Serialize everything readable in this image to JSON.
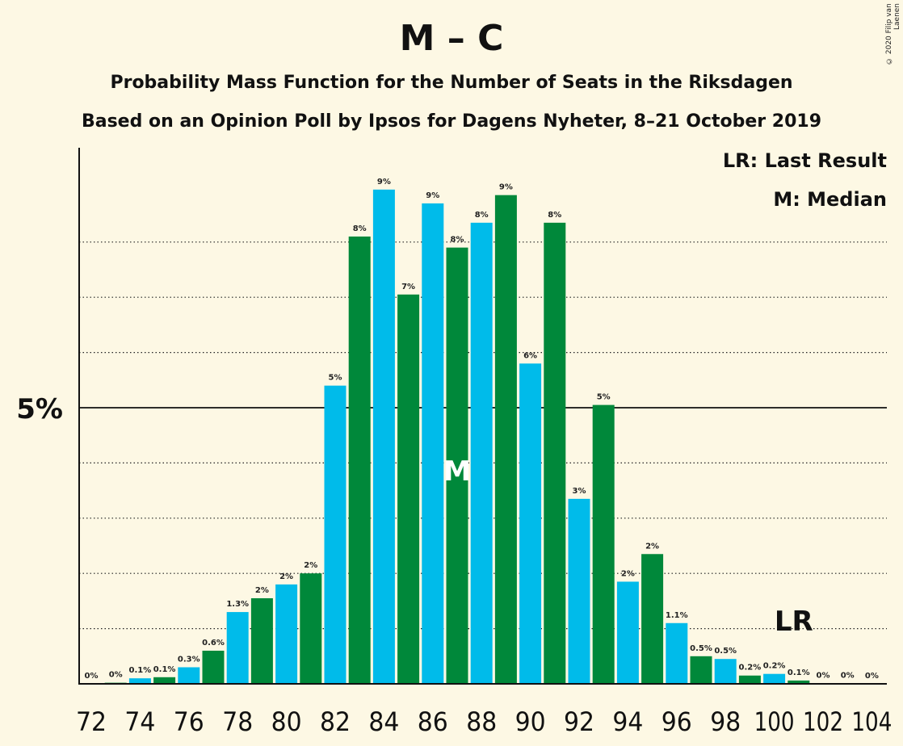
{
  "header": {
    "title": "M – C",
    "subtitle1": "Probability Mass Function for the Number of Seats in the Riksdagen",
    "subtitle2": "Based on an Opinion Poll by Ipsos for Dagens Nyheter, 8–21 October 2019",
    "copyright": "© 2020 Filip van Laenen"
  },
  "legend": {
    "lr": "LR: Last Result",
    "median": "M: Median"
  },
  "colors": {
    "blue": "#00bbea",
    "green": "#00883a",
    "background": "#fdf8e4"
  },
  "chart_data": {
    "type": "bar",
    "x": [
      72,
      73,
      74,
      75,
      76,
      77,
      78,
      79,
      80,
      81,
      82,
      83,
      84,
      85,
      86,
      87,
      88,
      89,
      90,
      91,
      92,
      93,
      94,
      95,
      96,
      97,
      98,
      99,
      100,
      101,
      102,
      103,
      104
    ],
    "values": [
      0,
      0.02,
      0.1,
      0.12,
      0.3,
      0.6,
      1.3,
      1.55,
      1.8,
      2.0,
      5.4,
      8.1,
      8.95,
      7.05,
      8.7,
      7.9,
      8.35,
      8.85,
      5.8,
      8.35,
      3.35,
      5.05,
      1.85,
      2.35,
      1.1,
      0.5,
      0.45,
      0.15,
      0.18,
      0.06,
      0.01,
      0.01,
      0
    ],
    "labels": [
      "0%",
      "0%",
      "0.1%",
      "0.1%",
      "0.3%",
      "0.6%",
      "1.3%",
      "2%",
      "2%",
      "2%",
      "5%",
      "8%",
      "9%",
      "7%",
      "9%",
      "8%",
      "8%",
      "9%",
      "6%",
      "8%",
      "3%",
      "5%",
      "2%",
      "2%",
      "1.1%",
      "0.5%",
      "0.5%",
      "0.2%",
      "0.2%",
      "0.1%",
      "0%",
      "0%",
      "0%"
    ],
    "x_ticks": [
      "72",
      "74",
      "76",
      "78",
      "80",
      "82",
      "84",
      "86",
      "88",
      "90",
      "92",
      "94",
      "96",
      "98",
      "100",
      "102",
      "104"
    ],
    "y_ticks": [
      "5%"
    ],
    "ylim": [
      0,
      9.7
    ],
    "median_seat": 87,
    "median_marker": "M",
    "last_result_seat": 101,
    "last_result_marker": "LR",
    "solid_gridline": 5,
    "dotted_gridlines": [
      1,
      2,
      3,
      4,
      6,
      7,
      8
    ],
    "xlabel": "",
    "ylabel": ""
  }
}
